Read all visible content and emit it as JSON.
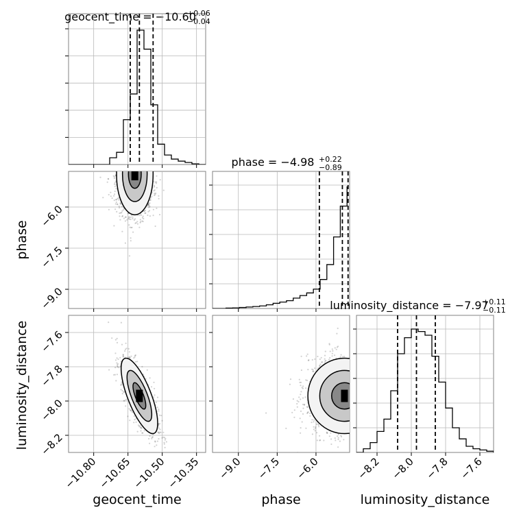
{
  "chart_data": {
    "type": "corner",
    "parameters": [
      {
        "name": "geocent_time",
        "title": "geocent_time = −10.60",
        "title_sup": "+0.06",
        "title_sub": "−0.04",
        "range": [
          -10.91,
          -10.31
        ],
        "ticks": [
          -10.8,
          -10.65,
          -10.5,
          -10.35
        ],
        "tick_labels": [
          "−10.80",
          "−10.65",
          "−10.50",
          "−10.35"
        ],
        "quantiles": [
          -10.64,
          -10.6,
          -10.54
        ],
        "hist_edges": [
          -10.91,
          -10.88,
          -10.85,
          -10.82,
          -10.79,
          -10.76,
          -10.73,
          -10.7,
          -10.67,
          -10.64,
          -10.61,
          -10.58,
          -10.55,
          -10.52,
          -10.49,
          -10.46,
          -10.43,
          -10.4,
          -10.37,
          -10.34,
          -10.31
        ],
        "hist_counts": [
          0,
          0,
          0,
          0,
          0,
          0,
          0.05,
          0.09,
          0.33,
          0.52,
          0.99,
          0.85,
          0.44,
          0.15,
          0.07,
          0.04,
          0.025,
          0.015,
          0.005,
          0,
          0
        ]
      },
      {
        "name": "phase",
        "title": "phase = −4.98",
        "title_sup": "+0.22",
        "title_sub": "−0.89",
        "range": [
          -10.0,
          -4.7
        ],
        "ticks": [
          -9.0,
          -7.5,
          -6.0
        ],
        "tick_labels": [
          "−9.0",
          "−7.5",
          "−6.0"
        ],
        "quantiles": [
          -5.87,
          -4.98,
          -4.76
        ],
        "hist_edges": [
          -10.0,
          -9.74,
          -9.48,
          -9.22,
          -8.96,
          -8.7,
          -8.44,
          -8.18,
          -7.92,
          -7.66,
          -7.4,
          -7.14,
          -6.88,
          -6.62,
          -6.36,
          -6.1,
          -5.84,
          -5.58,
          -5.32,
          -5.06,
          -4.8
        ],
        "hist_counts": [
          0,
          0,
          0.003,
          0.005,
          0.008,
          0.012,
          0.016,
          0.021,
          0.03,
          0.042,
          0.052,
          0.063,
          0.084,
          0.105,
          0.126,
          0.157,
          0.235,
          0.356,
          0.58,
          0.83,
          0.99
        ]
      },
      {
        "name": "luminosity_distance",
        "title": "luminosity_distance = −7.97",
        "title_sup": "+0.11",
        "title_sub": "−0.11",
        "range": [
          -8.32,
          -7.52
        ],
        "ticks": [
          -8.2,
          -8.0,
          -7.8,
          -7.6
        ],
        "tick_labels": [
          "−8.2",
          "−8.0",
          "−7.8",
          "−7.6"
        ],
        "quantiles": [
          -8.08,
          -7.97,
          -7.86
        ],
        "hist_edges": [
          -8.32,
          -8.28,
          -8.24,
          -8.2,
          -8.16,
          -8.12,
          -8.08,
          -8.04,
          -8.0,
          -7.96,
          -7.92,
          -7.88,
          -7.84,
          -7.8,
          -7.76,
          -7.72,
          -7.68,
          -7.64,
          -7.6,
          -7.56,
          -7.52
        ],
        "hist_counts": [
          0,
          0.03,
          0.08,
          0.17,
          0.27,
          0.5,
          0.8,
          0.93,
          1.0,
          0.98,
          0.95,
          0.78,
          0.57,
          0.36,
          0.2,
          0.11,
          0.05,
          0.03,
          0.02,
          0.01,
          0
        ]
      }
    ],
    "pairs": [
      {
        "x": "geocent_time",
        "y": "phase",
        "y_range": [
          -9.7,
          -4.7
        ],
        "y_ticks": [
          -9.0,
          -7.5,
          -6.0
        ],
        "y_tick_labels": [
          "−9.0",
          "−7.5",
          "−6.0"
        ],
        "peak": [
          -10.62,
          -4.8
        ],
        "cov": [
          [
            0.0016,
            0.0
          ],
          [
            0.0,
            0.55
          ]
        ],
        "density": [
          [
            0,
            0,
            0,
            0,
            0,
            0.02,
            0.12,
            0.45,
            1.0,
            0.75,
            0.3,
            0.08,
            0.02,
            0,
            0
          ],
          [
            0,
            0,
            0,
            0,
            0,
            0.01,
            0.08,
            0.3,
            0.55,
            0.45,
            0.2,
            0.06,
            0.01,
            0,
            0
          ],
          [
            0,
            0,
            0,
            0,
            0,
            0.0,
            0.04,
            0.18,
            0.32,
            0.28,
            0.14,
            0.04,
            0.0,
            0,
            0
          ]
        ]
      },
      {
        "x": "geocent_time",
        "y": "luminosity_distance",
        "y_range": [
          -8.3,
          -7.5
        ],
        "y_ticks": [
          -8.2,
          -8.0,
          -7.8,
          -7.6
        ],
        "y_tick_labels": [
          "−8.2",
          "−8.0",
          "−7.8",
          "−7.6"
        ],
        "peak": [
          -10.6,
          -7.97
        ],
        "cov": [
          [
            0.0016,
            -0.0032
          ],
          [
            -0.0032,
            0.0121
          ]
        ]
      },
      {
        "x": "phase",
        "y": "luminosity_distance",
        "y_range": [
          -8.3,
          -7.5
        ],
        "y_ticks": [],
        "y_tick_labels": [],
        "peak": [
          -4.9,
          -7.97
        ],
        "cov": [
          [
            0.5,
            0.0
          ],
          [
            0.0,
            0.0121
          ]
        ]
      }
    ],
    "axis_labels": {
      "x": [
        "geocent_time",
        "phase",
        "luminosity_distance"
      ],
      "y": [
        "phase",
        "luminosity_distance"
      ]
    },
    "grid": true
  }
}
